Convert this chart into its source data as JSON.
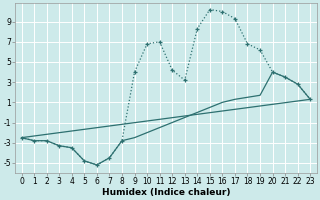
{
  "xlabel": "Humidex (Indice chaleur)",
  "bg_color": "#cdeaea",
  "grid_color": "#ffffff",
  "line_color": "#2d7070",
  "xlim": [
    -0.5,
    23.5
  ],
  "ylim": [
    -6.0,
    10.8
  ],
  "xticks": [
    0,
    1,
    2,
    3,
    4,
    5,
    6,
    7,
    8,
    9,
    10,
    11,
    12,
    13,
    14,
    15,
    16,
    17,
    18,
    19,
    20,
    21,
    22,
    23
  ],
  "yticks": [
    -5,
    -3,
    -1,
    1,
    3,
    5,
    7,
    9
  ],
  "curve_dotted_x": [
    0,
    1,
    2,
    3,
    4,
    5,
    6,
    7,
    8,
    9,
    10,
    11,
    12,
    13,
    14,
    15,
    16,
    17,
    18,
    19,
    20,
    21,
    22,
    23
  ],
  "curve_dotted_y": [
    -2.5,
    -2.8,
    -2.8,
    -3.3,
    -3.5,
    -4.8,
    -5.2,
    -4.5,
    -2.8,
    4.0,
    6.8,
    7.0,
    4.2,
    3.2,
    8.3,
    10.2,
    10.0,
    9.3,
    6.8,
    6.2,
    4.0,
    3.5,
    2.8,
    1.3
  ],
  "curve_solid_x": [
    0,
    1,
    2,
    3,
    4,
    5,
    6,
    7,
    8,
    9,
    10,
    11,
    12,
    13,
    14,
    15,
    16,
    17,
    18,
    19,
    20,
    21,
    22,
    23
  ],
  "curve_solid_y": [
    -2.5,
    -2.8,
    -2.8,
    -3.3,
    -3.5,
    -4.8,
    -5.2,
    -4.5,
    -2.8,
    -2.5,
    -2.0,
    -1.5,
    -1.0,
    -0.5,
    0.0,
    0.5,
    1.0,
    1.3,
    1.5,
    1.7,
    4.0,
    3.5,
    2.8,
    1.3
  ],
  "line_x": [
    0,
    23
  ],
  "line_y": [
    -2.5,
    1.3
  ]
}
